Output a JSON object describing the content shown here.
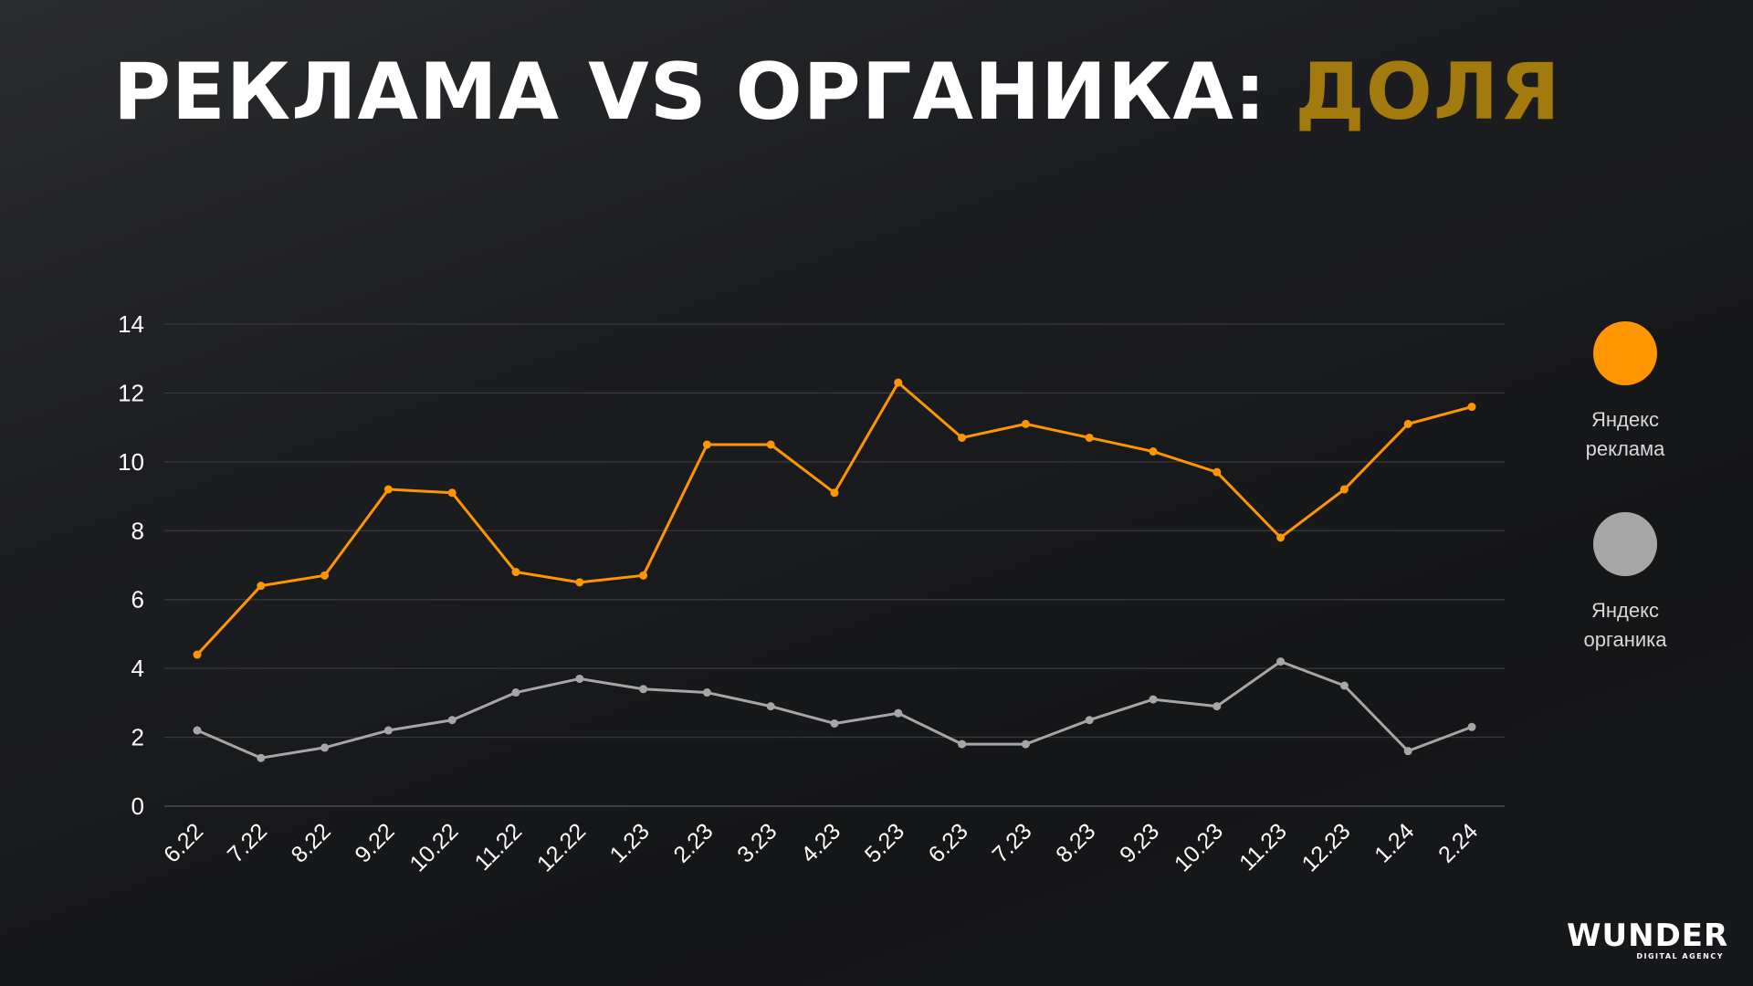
{
  "title": {
    "main": "РЕКЛАМА VS ОРГАНИКА: ",
    "accent": "ДОЛЯ"
  },
  "colors": {
    "accent_title": "#a27a0d",
    "series_ads": "#ff9500",
    "series_organic": "#a6a6a6",
    "grid": "#3a3b3e",
    "axis_text": "#ffffff"
  },
  "legend": [
    {
      "label": "Яндекс\nреклама",
      "color": "#ff9500"
    },
    {
      "label": "Яндекс\nорганика",
      "color": "#a6a6a6"
    }
  ],
  "logo": {
    "main": "WUNDER",
    "sub": "DIGITAL AGENCY"
  },
  "chart_data": {
    "type": "line",
    "title": "",
    "xlabel": "",
    "ylabel": "",
    "ylim": [
      0,
      14
    ],
    "yticks": [
      0,
      2,
      4,
      6,
      8,
      10,
      12,
      14
    ],
    "grid": true,
    "legend_position": "right",
    "categories": [
      "6.22",
      "7.22",
      "8.22",
      "9.22",
      "10.22",
      "11.22",
      "12.22",
      "1.23",
      "2.23",
      "3.23",
      "4.23",
      "5.23",
      "6.23",
      "7.23",
      "8.23",
      "9.23",
      "10.23",
      "11.23",
      "12.23",
      "1.24",
      "2.24"
    ],
    "series": [
      {
        "name": "Яндекс реклама",
        "color": "#ff9500",
        "values": [
          4.4,
          6.4,
          6.7,
          9.2,
          9.1,
          6.8,
          6.5,
          6.7,
          10.5,
          10.5,
          9.1,
          12.3,
          10.7,
          11.1,
          10.7,
          10.3,
          9.7,
          7.8,
          9.2,
          11.1,
          11.6
        ]
      },
      {
        "name": "Яндекс органика",
        "color": "#a6a6a6",
        "values": [
          2.2,
          1.4,
          1.7,
          2.2,
          2.5,
          3.3,
          3.7,
          3.4,
          3.3,
          2.9,
          2.4,
          2.7,
          1.8,
          1.8,
          2.5,
          3.1,
          2.9,
          4.2,
          3.5,
          1.6,
          2.3
        ]
      }
    ]
  }
}
